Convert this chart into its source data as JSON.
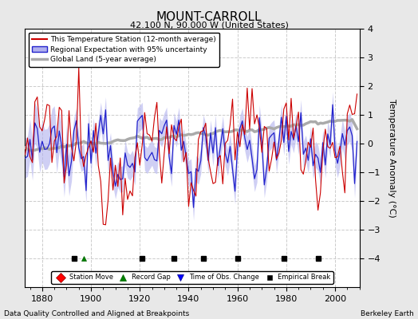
{
  "title": "MOUNT-CARROLL",
  "subtitle": "42.100 N, 90.000 W (United States)",
  "ylabel": "Temperature Anomaly (°C)",
  "xlabel_left": "Data Quality Controlled and Aligned at Breakpoints",
  "xlabel_right": "Berkeley Earth",
  "ylim": [
    -5,
    4
  ],
  "xlim": [
    1873,
    2010
  ],
  "xticks": [
    1880,
    1900,
    1920,
    1940,
    1960,
    1980,
    2000
  ],
  "yticks": [
    -4,
    -3,
    -2,
    -1,
    0,
    1,
    2,
    3,
    4
  ],
  "bg_color": "#e8e8e8",
  "plot_bg_color": "#ffffff",
  "grid_color": "#cccccc",
  "red_color": "#cc0000",
  "blue_color": "#2222cc",
  "blue_fill_color": "#b0b0ee",
  "gray_color": "#aaaaaa",
  "seed": 12345,
  "n_years": 137,
  "start_year": 1873,
  "station_move_years": [],
  "record_gap_years": [
    1897
  ],
  "time_obs_years": [],
  "empirical_break_years": [
    1893,
    1921,
    1934,
    1946,
    1960,
    1979,
    1993
  ]
}
